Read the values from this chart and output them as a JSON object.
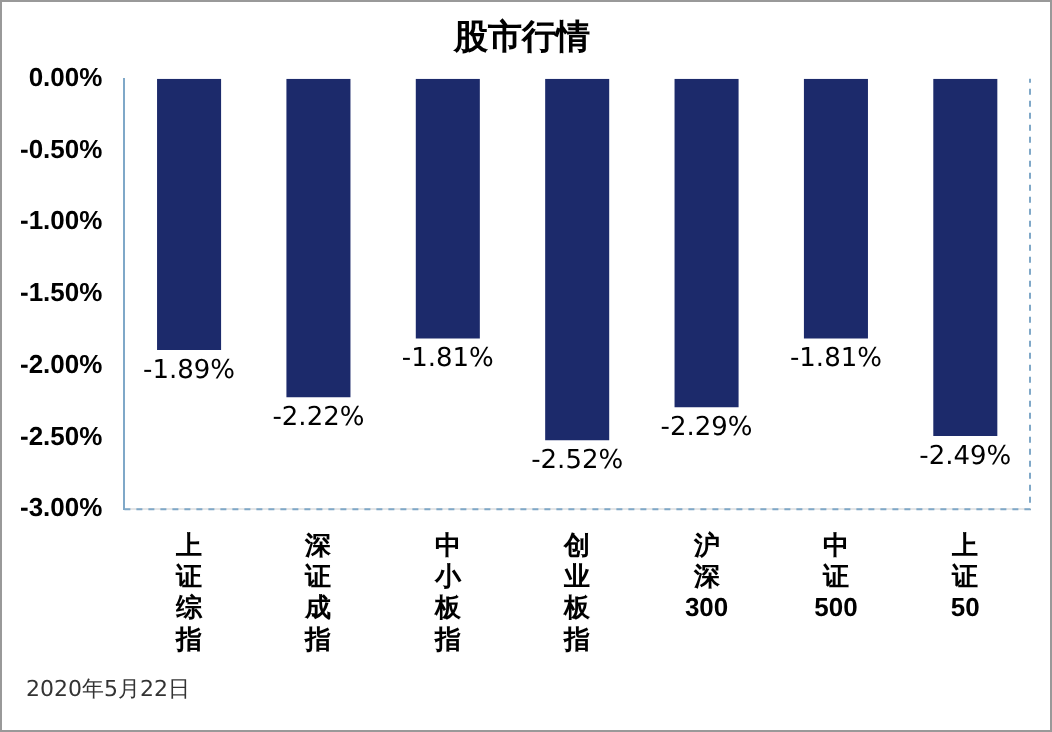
{
  "chart_data": {
    "type": "bar",
    "title": "股市行情",
    "categories": [
      "上证综指",
      "深证成指",
      "中小板指",
      "创业板指",
      "沪深300",
      "中证500",
      "上证50"
    ],
    "values": [
      -1.89,
      -2.22,
      -1.81,
      -2.52,
      -2.29,
      -1.81,
      -2.49
    ],
    "value_labels": [
      "-1.89%",
      "-2.22%",
      "-1.81%",
      "-2.52%",
      "-2.29%",
      "-1.81%",
      "-2.49%"
    ],
    "color": "#1c2a6b",
    "ylim": [
      -3,
      0
    ],
    "yticks": [
      {
        "value": -3,
        "label": "-3.00%"
      },
      {
        "value": -2.5,
        "label": "-2.50%"
      },
      {
        "value": -2,
        "label": "-2.00%"
      },
      {
        "value": -1.5,
        "label": "-1.50%"
      },
      {
        "value": -1,
        "label": "-1.00%"
      },
      {
        "value": -0.5,
        "label": "-0.50%"
      },
      {
        "value": 0,
        "label": "0.00%"
      }
    ],
    "grid": false,
    "annotations": [
      "2020年5月22日"
    ]
  }
}
